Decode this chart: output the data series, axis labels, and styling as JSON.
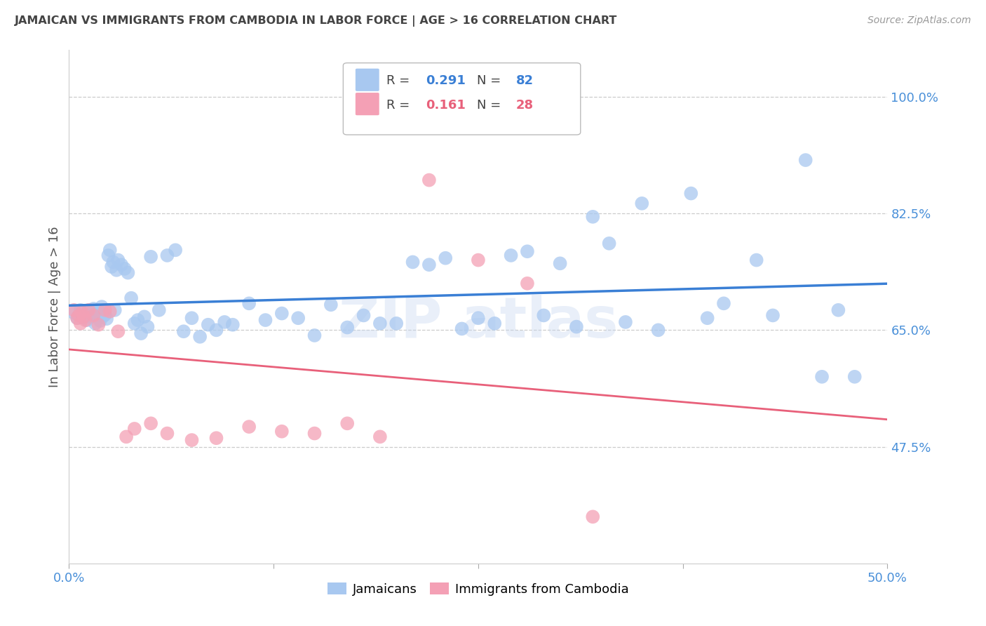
{
  "title": "JAMAICAN VS IMMIGRANTS FROM CAMBODIA IN LABOR FORCE | AGE > 16 CORRELATION CHART",
  "source": "Source: ZipAtlas.com",
  "ylabel": "In Labor Force | Age > 16",
  "r_jamaican": 0.291,
  "n_jamaican": 82,
  "r_cambodian": 0.161,
  "n_cambodian": 28,
  "color_jamaican": "#a8c8f0",
  "color_cambodian": "#f4a0b5",
  "color_jamaican_line": "#3a7fd5",
  "color_cambodian_line": "#e8607a",
  "xlim": [
    0.0,
    0.5
  ],
  "ylim": [
    0.3,
    1.07
  ],
  "xticks": [
    0.0,
    0.125,
    0.25,
    0.375,
    0.5
  ],
  "xtick_labels": [
    "0.0%",
    "",
    "",
    "",
    "50.0%"
  ],
  "yticks_right": [
    1.0,
    0.825,
    0.65,
    0.475
  ],
  "ytick_labels_right": [
    "100.0%",
    "82.5%",
    "65.0%",
    "47.5%"
  ],
  "jamaican_x": [
    0.003,
    0.005,
    0.006,
    0.007,
    0.008,
    0.009,
    0.01,
    0.011,
    0.012,
    0.013,
    0.014,
    0.015,
    0.016,
    0.017,
    0.018,
    0.019,
    0.02,
    0.021,
    0.022,
    0.023,
    0.024,
    0.025,
    0.026,
    0.027,
    0.028,
    0.029,
    0.03,
    0.032,
    0.034,
    0.036,
    0.038,
    0.04,
    0.042,
    0.044,
    0.046,
    0.048,
    0.05,
    0.055,
    0.06,
    0.065,
    0.07,
    0.075,
    0.08,
    0.085,
    0.09,
    0.095,
    0.1,
    0.11,
    0.12,
    0.13,
    0.14,
    0.15,
    0.16,
    0.17,
    0.18,
    0.19,
    0.2,
    0.21,
    0.22,
    0.23,
    0.24,
    0.25,
    0.26,
    0.27,
    0.28,
    0.29,
    0.3,
    0.31,
    0.32,
    0.33,
    0.34,
    0.35,
    0.36,
    0.38,
    0.39,
    0.4,
    0.42,
    0.43,
    0.45,
    0.46,
    0.47,
    0.48
  ],
  "jamaican_y": [
    0.676,
    0.668,
    0.672,
    0.68,
    0.674,
    0.669,
    0.671,
    0.665,
    0.678,
    0.67,
    0.673,
    0.682,
    0.66,
    0.675,
    0.679,
    0.664,
    0.685,
    0.671,
    0.673,
    0.667,
    0.762,
    0.77,
    0.745,
    0.752,
    0.68,
    0.74,
    0.755,
    0.748,
    0.742,
    0.736,
    0.698,
    0.66,
    0.665,
    0.645,
    0.67,
    0.655,
    0.76,
    0.68,
    0.762,
    0.77,
    0.648,
    0.668,
    0.64,
    0.658,
    0.65,
    0.662,
    0.658,
    0.69,
    0.665,
    0.675,
    0.668,
    0.642,
    0.688,
    0.654,
    0.672,
    0.66,
    0.66,
    0.752,
    0.748,
    0.758,
    0.652,
    0.668,
    0.66,
    0.762,
    0.768,
    0.672,
    0.75,
    0.655,
    0.82,
    0.78,
    0.662,
    0.84,
    0.65,
    0.855,
    0.668,
    0.69,
    0.755,
    0.672,
    0.905,
    0.58,
    0.68,
    0.58
  ],
  "cambodian_x": [
    0.003,
    0.005,
    0.006,
    0.007,
    0.008,
    0.009,
    0.01,
    0.012,
    0.015,
    0.018,
    0.022,
    0.025,
    0.03,
    0.035,
    0.04,
    0.05,
    0.06,
    0.075,
    0.09,
    0.11,
    0.13,
    0.15,
    0.17,
    0.19,
    0.22,
    0.25,
    0.28,
    0.32
  ],
  "cambodian_y": [
    0.68,
    0.668,
    0.672,
    0.66,
    0.676,
    0.67,
    0.665,
    0.68,
    0.672,
    0.658,
    0.68,
    0.678,
    0.648,
    0.49,
    0.502,
    0.51,
    0.495,
    0.485,
    0.488,
    0.505,
    0.498,
    0.495,
    0.51,
    0.49,
    0.875,
    0.755,
    0.72,
    0.37
  ],
  "legend_items": [
    "Jamaicans",
    "Immigrants from Cambodia"
  ],
  "background_color": "#ffffff",
  "grid_color": "#cccccc",
  "title_color": "#444444",
  "tick_color": "#4a90d9",
  "source_color": "#999999"
}
